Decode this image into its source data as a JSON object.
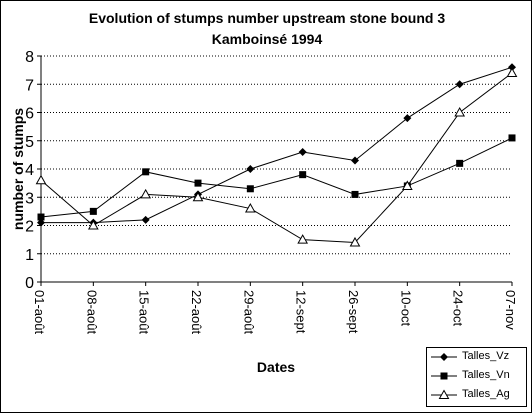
{
  "chart_data": {
    "type": "line",
    "title": "Evolution of stumps number upstream stone bound 3",
    "subtitle": "Kamboinsé 1994",
    "xlabel": "Dates",
    "ylabel": "number of stumps",
    "categories": [
      "01-août",
      "08-août",
      "15-août",
      "22-août",
      "29-août",
      "12-sept",
      "26-sept",
      "10-oct",
      "24-oct",
      "07-nov"
    ],
    "ylim": [
      0,
      8
    ],
    "yticks": [
      0,
      1,
      2,
      3,
      4,
      5,
      6,
      7,
      8
    ],
    "grid": "horizontal dotted",
    "legend_position": "bottom-right",
    "series": [
      {
        "name": "Talles_Vz",
        "marker": "diamond",
        "color": "#000000",
        "values": [
          2.1,
          2.1,
          2.2,
          3.1,
          4.0,
          4.6,
          4.3,
          5.8,
          7.0,
          7.6
        ]
      },
      {
        "name": "Talles_Vn",
        "marker": "square",
        "color": "#000000",
        "values": [
          2.3,
          2.5,
          3.9,
          3.5,
          3.3,
          3.8,
          3.1,
          3.4,
          4.2,
          5.1
        ]
      },
      {
        "name": "Talles_Ag",
        "marker": "triangle-open",
        "color": "#000000",
        "values": [
          3.6,
          2.0,
          3.1,
          3.0,
          2.6,
          1.5,
          1.4,
          3.4,
          6.0,
          7.4
        ]
      }
    ]
  }
}
